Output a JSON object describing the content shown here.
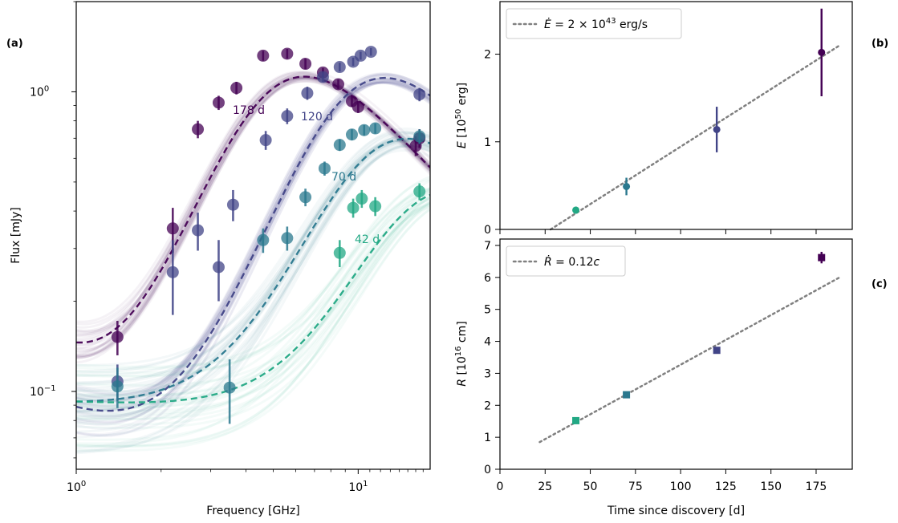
{
  "chart_data": [
    {
      "panel_label": "(a)",
      "type": "scatter",
      "xlabel": "Frequency [GHz]",
      "ylabel": "Flux [mJy]",
      "xscale": "log",
      "yscale": "log",
      "xlim": [
        1.0,
        18.0
      ],
      "ylim": [
        0.055,
        2.0
      ],
      "x_ticks": [
        "10^0",
        "10^1"
      ],
      "y_ticks": [
        "10^-1",
        "10^0"
      ],
      "series": [
        {
          "label": "178 d",
          "color": "#440154",
          "points": [
            [
              1.4,
              0.152,
              0.02
            ],
            [
              2.2,
              0.35,
              0.06
            ],
            [
              2.7,
              0.75,
              0.05
            ],
            [
              3.2,
              0.92,
              0.05
            ],
            [
              3.7,
              1.03,
              0.05
            ],
            [
              4.6,
              1.32,
              0.05
            ],
            [
              5.6,
              1.34,
              0.05
            ],
            [
              6.5,
              1.24,
              0.05
            ],
            [
              7.5,
              1.16,
              0.04
            ],
            [
              8.5,
              1.06,
              0.04
            ],
            [
              9.5,
              0.93,
              0.04
            ],
            [
              10.0,
              0.89,
              0.04
            ],
            [
              16.0,
              0.66,
              0.05
            ],
            [
              16.5,
              0.7,
              0.05
            ]
          ]
        },
        {
          "label": "120 d",
          "color": "#414487",
          "points": [
            [
              1.4,
              0.108,
              0.015
            ],
            [
              2.2,
              0.25,
              0.07
            ],
            [
              2.7,
              0.345,
              0.05
            ],
            [
              3.2,
              0.26,
              0.06
            ],
            [
              3.6,
              0.42,
              0.05
            ],
            [
              4.7,
              0.69,
              0.05
            ],
            [
              5.6,
              0.83,
              0.05
            ],
            [
              6.6,
              0.99,
              0.05
            ],
            [
              7.5,
              1.12,
              0.04
            ],
            [
              8.6,
              1.21,
              0.04
            ],
            [
              9.6,
              1.26,
              0.04
            ],
            [
              10.2,
              1.32,
              0.04
            ],
            [
              11.1,
              1.36,
              0.04
            ],
            [
              16.5,
              0.98,
              0.05
            ]
          ]
        },
        {
          "label": "70 d",
          "color": "#2a788e",
          "points": [
            [
              1.4,
              0.104,
              0.016
            ],
            [
              3.5,
              0.103,
              0.025
            ],
            [
              4.6,
              0.32,
              0.03
            ],
            [
              5.6,
              0.325,
              0.03
            ],
            [
              6.5,
              0.445,
              0.03
            ],
            [
              7.6,
              0.555,
              0.03
            ],
            [
              8.6,
              0.665,
              0.03
            ],
            [
              9.5,
              0.72,
              0.03
            ],
            [
              10.5,
              0.745,
              0.03
            ],
            [
              11.5,
              0.755,
              0.03
            ],
            [
              16.5,
              0.71,
              0.04
            ]
          ]
        },
        {
          "label": "42 d",
          "color": "#22a884",
          "points": [
            [
              8.6,
              0.29,
              0.03
            ],
            [
              9.6,
              0.41,
              0.03
            ],
            [
              10.3,
              0.44,
              0.03
            ],
            [
              11.5,
              0.415,
              0.03
            ],
            [
              16.5,
              0.465,
              0.03
            ]
          ]
        }
      ]
    },
    {
      "panel_label": "(b)",
      "type": "scatter",
      "xlabel": "",
      "ylabel": "E [10^50 erg]",
      "xlim": [
        0,
        195
      ],
      "ylim": [
        0,
        2.6
      ],
      "y_ticks": [
        0,
        1,
        2
      ],
      "legend": "Ė = 2 × 10^43 erg/s",
      "legend_position": "top-left",
      "fit_line": {
        "x": [
          28,
          188
        ],
        "y": [
          0.0,
          2.1
        ]
      },
      "points": [
        {
          "x": 42,
          "y": 0.22,
          "err": 0.04,
          "color": "#22a884"
        },
        {
          "x": 70,
          "y": 0.49,
          "err": 0.1,
          "color": "#2a788e"
        },
        {
          "x": 120,
          "y": 1.14,
          "err": 0.26,
          "color": "#414487"
        },
        {
          "x": 178,
          "y": 2.02,
          "err": 0.5,
          "color": "#440154"
        }
      ]
    },
    {
      "panel_label": "(c)",
      "type": "scatter",
      "xlabel": "Time since discovery [d]",
      "ylabel": "R [10^16 cm]",
      "xlim": [
        0,
        195
      ],
      "ylim": [
        0,
        7.2
      ],
      "x_ticks": [
        0,
        25,
        50,
        75,
        100,
        125,
        150,
        175
      ],
      "y_ticks": [
        0,
        1,
        2,
        3,
        4,
        5,
        6,
        7
      ],
      "legend": "Ṙ = 0.12c",
      "legend_position": "top-left",
      "fit_line": {
        "x": [
          22,
          188
        ],
        "y": [
          0.85,
          6.0
        ]
      },
      "points": [
        {
          "x": 42,
          "y": 1.52,
          "err": 0.06,
          "color": "#22a884"
        },
        {
          "x": 70,
          "y": 2.33,
          "err": 0.07,
          "color": "#2a788e"
        },
        {
          "x": 120,
          "y": 3.72,
          "err": 0.09,
          "color": "#414487"
        },
        {
          "x": 178,
          "y": 6.62,
          "err": 0.18,
          "color": "#440154"
        }
      ]
    }
  ]
}
